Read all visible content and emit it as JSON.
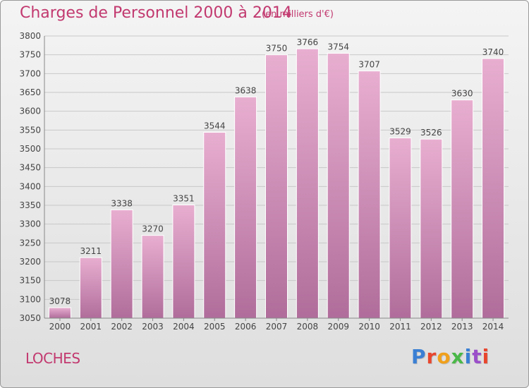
{
  "title": "Charges de Personnel 2000 à 2014",
  "subtitle": "(en milliers d'€)",
  "commune": "LOCHES",
  "logo": {
    "text": "Proxiti",
    "colors": [
      "#3a7fd4",
      "#e8462e",
      "#f0a01c",
      "#4ab848",
      "#3a7fd4",
      "#9b4fc9",
      "#e8462e"
    ]
  },
  "colors": {
    "bar_top": "#e8aed0",
    "bar_bottom": "#b06d9b",
    "accent": "#c2396f"
  },
  "chart_data": {
    "type": "bar",
    "categories": [
      "2000",
      "2001",
      "2002",
      "2003",
      "2004",
      "2005",
      "2006",
      "2007",
      "2008",
      "2009",
      "2010",
      "2011",
      "2012",
      "2013",
      "2014"
    ],
    "values": [
      3078,
      3211,
      3338,
      3270,
      3351,
      3544,
      3638,
      3750,
      3766,
      3754,
      3707,
      3529,
      3526,
      3630,
      3740
    ],
    "ylim": [
      3050,
      3800
    ],
    "yticks": [
      3050,
      3100,
      3150,
      3200,
      3250,
      3300,
      3350,
      3400,
      3450,
      3500,
      3550,
      3600,
      3650,
      3700,
      3750,
      3800
    ],
    "grid": true,
    "xlabel": "",
    "ylabel": ""
  }
}
